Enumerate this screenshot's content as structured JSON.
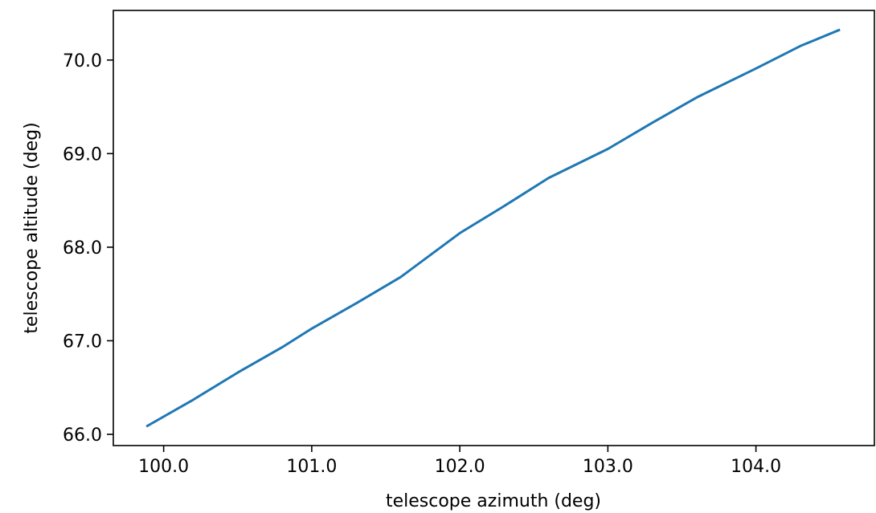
{
  "chart_data": {
    "type": "line",
    "title": "",
    "xlabel": "telescope azimuth (deg)",
    "ylabel": "telescope altitude (deg)",
    "xlim": [
      99.66,
      104.8
    ],
    "ylim": [
      65.88,
      70.53
    ],
    "grid": false,
    "legend": "none",
    "x_ticks": [
      100.0,
      101.0,
      102.0,
      103.0,
      104.0
    ],
    "x_tick_labels": [
      "100.0",
      "101.0",
      "102.0",
      "103.0",
      "104.0"
    ],
    "y_ticks": [
      66.0,
      67.0,
      68.0,
      69.0,
      70.0
    ],
    "y_tick_labels": [
      "66.0",
      "67.0",
      "68.0",
      "69.0",
      "70.0"
    ],
    "series": [
      {
        "color": "#1f77b4",
        "x": [
          99.89,
          100.2,
          100.5,
          100.8,
          101.0,
          101.3,
          101.6,
          102.0,
          102.3,
          102.6,
          103.0,
          103.3,
          103.6,
          104.0,
          104.3,
          104.56
        ],
        "y": [
          66.09,
          66.37,
          66.66,
          66.93,
          67.13,
          67.4,
          67.68,
          68.15,
          68.44,
          68.74,
          69.05,
          69.33,
          69.6,
          69.91,
          70.15,
          70.32
        ]
      }
    ]
  }
}
